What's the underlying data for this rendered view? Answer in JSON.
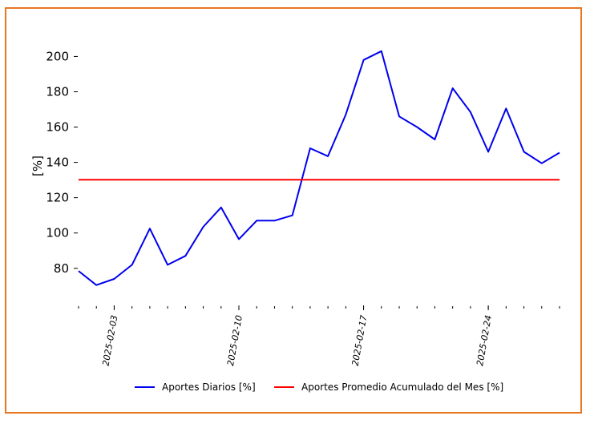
{
  "chart_data": {
    "type": "line",
    "title": "",
    "xlabel": "",
    "ylabel": "[%]",
    "ylim": [
      64,
      212
    ],
    "yticks": [
      80,
      100,
      120,
      140,
      160,
      180,
      200
    ],
    "xlim": [
      "2025-02-01",
      "2025-02-28"
    ],
    "xtick_labels": [
      "2025-02-03",
      "2025-02-10",
      "2025-02-17",
      "2025-02-24"
    ],
    "grid": false,
    "legend_position": "bottom-center",
    "series": [
      {
        "name": "Aportes Diarios [%]",
        "color": "#0000ee",
        "x": [
          "2025-02-01",
          "2025-02-02",
          "2025-02-03",
          "2025-02-04",
          "2025-02-05",
          "2025-02-06",
          "2025-02-07",
          "2025-02-08",
          "2025-02-09",
          "2025-02-10",
          "2025-02-11",
          "2025-02-12",
          "2025-02-13",
          "2025-02-14",
          "2025-02-15",
          "2025-02-16",
          "2025-02-17",
          "2025-02-18",
          "2025-02-19",
          "2025-02-20",
          "2025-02-21",
          "2025-02-22",
          "2025-02-23",
          "2025-02-24",
          "2025-02-25",
          "2025-02-26",
          "2025-02-27",
          "2025-02-28"
        ],
        "values": [
          78.5,
          70.5,
          74,
          82,
          102.5,
          82,
          87,
          103.5,
          114.5,
          96.5,
          107,
          107,
          110,
          148,
          143.5,
          167,
          198,
          203,
          166,
          160,
          153,
          182,
          168.5,
          146,
          170.5,
          146,
          139.5,
          145.5
        ]
      },
      {
        "name": "Aportes Promedio Acumulado del Mes [%]",
        "color": "#ff0000",
        "x": [
          "2025-02-01",
          "2025-02-28"
        ],
        "values": [
          130.2,
          130.2
        ]
      }
    ]
  }
}
